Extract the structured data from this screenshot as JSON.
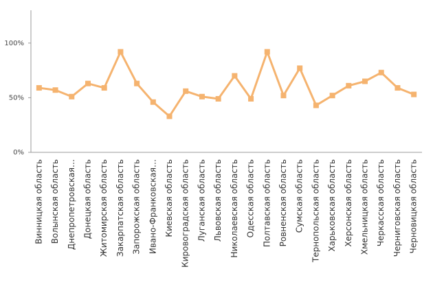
{
  "chart_data": {
    "type": "line",
    "categories": [
      "Винницкая область",
      "Волынская область",
      "Днепропетровская…",
      "Донецкая область",
      "Житомирская область",
      "Закарпатская область",
      "Запорожская область",
      "Ивано-Франковская…",
      "Киевская область",
      "Кировоградская область",
      "Луганская область",
      "Львовская область",
      "Николаевская область",
      "Одесская область",
      "Полтавская область",
      "Ровненская область",
      "Сумская область",
      "Тернопольская область",
      "Харьковская область",
      "Херсонская область",
      "Хмельницкая область",
      "Черкасская область",
      "Черниговская область",
      "Черновицкая область"
    ],
    "values": [
      59,
      57,
      51,
      63,
      59,
      92,
      63,
      46,
      33,
      56,
      51,
      49,
      70,
      49,
      92,
      52,
      77,
      43,
      52,
      61,
      65,
      73,
      59,
      53
    ],
    "color": "#f5b36f",
    "ylim": [
      0,
      130
    ],
    "yticks": [
      {
        "value": 0,
        "label": "0%"
      },
      {
        "value": 50,
        "label": "50%"
      },
      {
        "value": 100,
        "label": "100%"
      }
    ],
    "grid": false
  }
}
